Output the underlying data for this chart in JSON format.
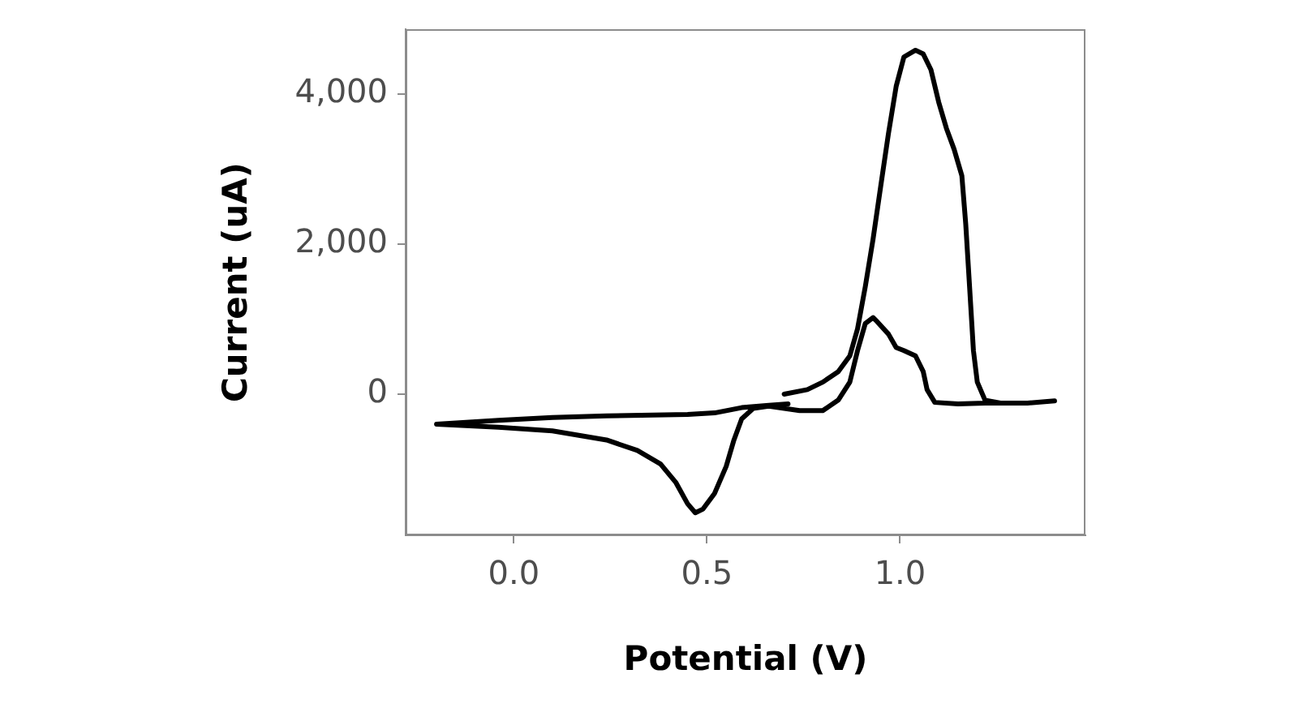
{
  "chart_data": {
    "type": "line",
    "xlabel": "Potential (V)",
    "ylabel": "Current (uA)",
    "xlim": [
      -0.28,
      1.48
    ],
    "ylim": [
      -1880,
      4860
    ],
    "xticks": [
      {
        "value": 0,
        "label": "0.0"
      },
      {
        "value": 0.5,
        "label": "0.5"
      },
      {
        "value": 1,
        "label": "1.0"
      }
    ],
    "yticks": [
      {
        "value": 0,
        "label": "0"
      },
      {
        "value": 2000,
        "label": "2,000"
      },
      {
        "value": 4000,
        "label": "4,000"
      }
    ],
    "grid": false,
    "legend": false,
    "marker": "none",
    "line_style": "solid",
    "series": [
      {
        "color": "#000000",
        "x": [
          0.7,
          0.76,
          0.8,
          0.84,
          0.87,
          0.89,
          0.91,
          0.93,
          0.95,
          0.97,
          0.99,
          1.01,
          1.04,
          1.06,
          1.08,
          1.1,
          1.12,
          1.14,
          1.16,
          1.17,
          1.18,
          1.19,
          1.2,
          1.22,
          1.26,
          1.33,
          1.4,
          1.33,
          1.22,
          1.15,
          1.09,
          1.07,
          1.06,
          1.04,
          1.01,
          0.99,
          0.97,
          0.94,
          0.93,
          0.91,
          0.89,
          0.87,
          0.84,
          0.8,
          0.74,
          0.7,
          0.66,
          0.62,
          0.59,
          0.57,
          0.55,
          0.52,
          0.49,
          0.47,
          0.45,
          0.42,
          0.38,
          0.32,
          0.24,
          0.1,
          -0.04,
          -0.2,
          -0.04,
          0.1,
          0.24,
          0.45,
          0.52,
          0.59,
          0.66,
          0.71
        ],
        "values": [
          0,
          60,
          160,
          300,
          510,
          870,
          1430,
          2060,
          2770,
          3470,
          4100,
          4490,
          4580,
          4530,
          4320,
          3890,
          3540,
          3260,
          2910,
          2270,
          1430,
          580,
          160,
          -80,
          -120,
          -120,
          -90,
          -120,
          -120,
          -130,
          -110,
          60,
          300,
          510,
          580,
          620,
          800,
          970,
          1020,
          940,
          580,
          160,
          -80,
          -220,
          -220,
          -190,
          -160,
          -190,
          -330,
          -610,
          -960,
          -1320,
          -1530,
          -1580,
          -1460,
          -1180,
          -930,
          -750,
          -610,
          -490,
          -440,
          -400,
          -350,
          -310,
          -290,
          -270,
          -250,
          -180,
          -150,
          -130
        ]
      }
    ]
  }
}
